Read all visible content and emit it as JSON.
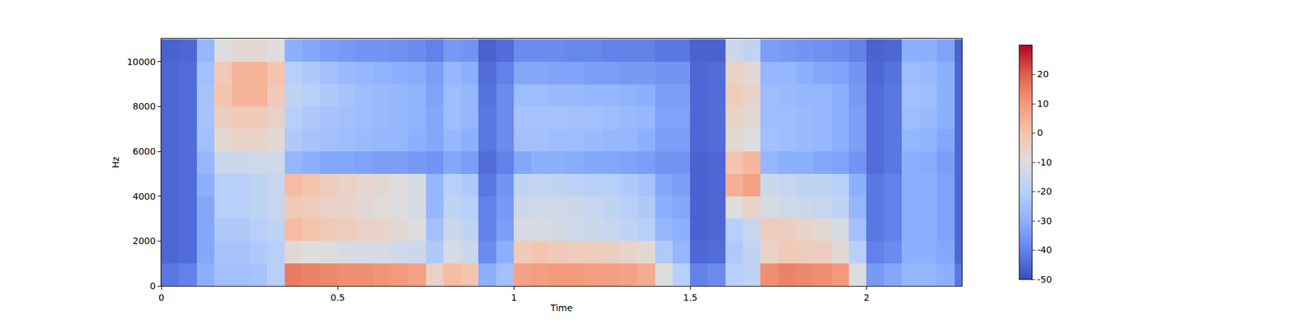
{
  "chart_data": {
    "type": "heatmap",
    "x_label": "Time",
    "y_label": "Hz",
    "color": "coolwarm",
    "xlim": [
      0,
      2.27
    ],
    "ylim": [
      0,
      11025
    ],
    "xticks": [
      0,
      0.5,
      1,
      1.5,
      2
    ],
    "yticks": [
      0,
      2000,
      4000,
      6000,
      8000,
      10000
    ],
    "colorbar_range": [
      -50,
      30
    ],
    "colorbar_ticks": [
      -50,
      -40,
      -30,
      -20,
      -10,
      0,
      10,
      20
    ],
    "x": [
      0.025,
      0.075,
      0.125,
      0.175,
      0.225,
      0.275,
      0.325,
      0.375,
      0.425,
      0.475,
      0.525,
      0.575,
      0.625,
      0.675,
      0.725,
      0.775,
      0.825,
      0.875,
      0.925,
      0.975,
      1.025,
      1.075,
      1.125,
      1.175,
      1.225,
      1.275,
      1.325,
      1.375,
      1.425,
      1.475,
      1.525,
      1.575,
      1.625,
      1.675,
      1.725,
      1.775,
      1.825,
      1.875,
      1.925,
      1.975,
      2.025,
      2.075,
      2.125,
      2.175,
      2.225,
      2.275
    ],
    "y": [
      500,
      1500,
      2500,
      3500,
      4500,
      5500,
      6500,
      7500,
      8500,
      9500,
      10500
    ],
    "z": [
      [
        -42,
        -40,
        -30,
        -25,
        -25,
        -24,
        -20,
        15,
        14,
        13,
        12,
        12,
        11,
        10,
        8,
        -5,
        2,
        0,
        -30,
        -25,
        8,
        9,
        10,
        10,
        9,
        9,
        8,
        6,
        -10,
        -20,
        -40,
        -38,
        -20,
        -18,
        12,
        14,
        13,
        12,
        10,
        -10,
        -35,
        -32,
        -28,
        -28,
        -30,
        -42
      ],
      [
        -45,
        -44,
        -32,
        -24,
        -24,
        -22,
        -20,
        -8,
        -10,
        -10,
        -12,
        -12,
        -12,
        -14,
        -15,
        -22,
        -12,
        -15,
        -38,
        -30,
        -2,
        0,
        -2,
        -3,
        -3,
        -4,
        -6,
        -8,
        -22,
        -28,
        -45,
        -44,
        -22,
        -18,
        -5,
        -2,
        -3,
        -4,
        -8,
        -20,
        -40,
        -38,
        -30,
        -30,
        -32,
        -45
      ],
      [
        -45,
        -44,
        -32,
        -22,
        -22,
        -20,
        -18,
        2,
        0,
        -2,
        -3,
        -5,
        -6,
        -8,
        -10,
        -25,
        -15,
        -18,
        -40,
        -34,
        -12,
        -12,
        -13,
        -14,
        -15,
        -16,
        -18,
        -20,
        -28,
        -30,
        -46,
        -45,
        -20,
        -16,
        -3,
        -4,
        -6,
        -8,
        -12,
        -25,
        -42,
        -40,
        -30,
        -30,
        -33,
        -45
      ],
      [
        -45,
        -44,
        -32,
        -20,
        -20,
        -18,
        -16,
        -2,
        -3,
        -5,
        -6,
        -8,
        -9,
        -10,
        -12,
        -28,
        -18,
        -20,
        -40,
        -35,
        -15,
        -14,
        -14,
        -15,
        -16,
        -18,
        -20,
        -22,
        -30,
        -32,
        -46,
        -45,
        -10,
        -5,
        -12,
        -14,
        -15,
        -16,
        -18,
        -28,
        -42,
        -40,
        -30,
        -30,
        -33,
        -45
      ],
      [
        -45,
        -44,
        -30,
        -20,
        -20,
        -18,
        -16,
        2,
        0,
        -3,
        -5,
        -7,
        -8,
        -10,
        -12,
        -28,
        -20,
        -22,
        -42,
        -36,
        -18,
        -17,
        -18,
        -19,
        -20,
        -20,
        -22,
        -24,
        -32,
        -34,
        -46,
        -45,
        5,
        8,
        -15,
        -16,
        -18,
        -18,
        -20,
        -30,
        -42,
        -40,
        -30,
        -30,
        -33,
        -45
      ],
      [
        -45,
        -44,
        -28,
        -15,
        -15,
        -14,
        -14,
        -28,
        -30,
        -32,
        -32,
        -33,
        -34,
        -34,
        -35,
        -36,
        -32,
        -34,
        -44,
        -40,
        -32,
        -30,
        -30,
        -31,
        -32,
        -32,
        -33,
        -34,
        -36,
        -36,
        -46,
        -45,
        0,
        3,
        -28,
        -30,
        -30,
        -32,
        -33,
        -36,
        -44,
        -42,
        -30,
        -31,
        -34,
        -45
      ],
      [
        -45,
        -44,
        -25,
        -8,
        -6,
        -6,
        -8,
        -22,
        -24,
        -25,
        -26,
        -27,
        -28,
        -28,
        -30,
        -32,
        -28,
        -30,
        -42,
        -38,
        -25,
        -25,
        -26,
        -26,
        -27,
        -28,
        -28,
        -30,
        -34,
        -34,
        -45,
        -44,
        -8,
        -10,
        -25,
        -26,
        -27,
        -28,
        -30,
        -34,
        -44,
        -42,
        -28,
        -29,
        -32,
        -45
      ],
      [
        -45,
        -44,
        -24,
        -4,
        -2,
        -2,
        -5,
        -20,
        -22,
        -24,
        -25,
        -26,
        -27,
        -28,
        -29,
        -32,
        -26,
        -28,
        -42,
        -38,
        -24,
        -24,
        -24,
        -25,
        -25,
        -26,
        -27,
        -28,
        -33,
        -33,
        -45,
        -44,
        -5,
        -8,
        -26,
        -26,
        -27,
        -28,
        -30,
        -34,
        -44,
        -42,
        -26,
        -27,
        -30,
        -45
      ],
      [
        -45,
        -44,
        -24,
        0,
        4,
        4,
        -2,
        -18,
        -20,
        -22,
        -24,
        -26,
        -27,
        -28,
        -29,
        -33,
        -26,
        -28,
        -43,
        -38,
        -26,
        -26,
        -27,
        -27,
        -28,
        -28,
        -29,
        -30,
        -34,
        -34,
        -45,
        -44,
        -3,
        -6,
        -26,
        -27,
        -28,
        -28,
        -30,
        -35,
        -44,
        -42,
        -25,
        -26,
        -30,
        -45
      ],
      [
        -45,
        -44,
        -25,
        -2,
        4,
        4,
        0,
        -20,
        -22,
        -25,
        -27,
        -28,
        -29,
        -30,
        -31,
        -34,
        -28,
        -30,
        -44,
        -40,
        -32,
        -32,
        -33,
        -33,
        -34,
        -34,
        -35,
        -35,
        -36,
        -36,
        -45,
        -44,
        -5,
        -8,
        -28,
        -28,
        -30,
        -32,
        -33,
        -36,
        -45,
        -43,
        -26,
        -27,
        -30,
        -45
      ],
      [
        -46,
        -45,
        -28,
        -10,
        -8,
        -8,
        -10,
        -30,
        -32,
        -34,
        -35,
        -36,
        -36,
        -37,
        -38,
        -40,
        -35,
        -36,
        -46,
        -44,
        -38,
        -38,
        -38,
        -39,
        -39,
        -40,
        -40,
        -40,
        -42,
        -42,
        -46,
        -46,
        -15,
        -18,
        -34,
        -35,
        -36,
        -37,
        -38,
        -40,
        -46,
        -45,
        -30,
        -30,
        -33,
        -46
      ]
    ]
  }
}
